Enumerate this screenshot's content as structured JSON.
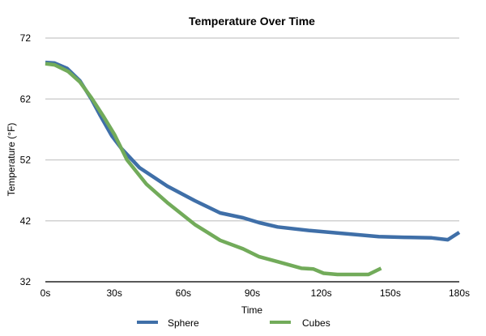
{
  "chart_data": {
    "type": "line",
    "title": "Temperature Over Time",
    "xlabel": "Time",
    "ylabel": "Temperature (°F)",
    "xlim": [
      0,
      180
    ],
    "ylim": [
      32,
      72
    ],
    "x_ticks": [
      "0s",
      "30s",
      "60s",
      "90s",
      "120s",
      "150s",
      "180s"
    ],
    "x_tick_values": [
      0,
      30,
      60,
      90,
      120,
      150,
      180
    ],
    "y_ticks": [
      "32",
      "42",
      "52",
      "62",
      "72"
    ],
    "y_tick_values": [
      32,
      42,
      52,
      62,
      72
    ],
    "grid": "horizontal",
    "legend_position": "bottom",
    "series": [
      {
        "name": "Sphere",
        "color": "#3f6fa8",
        "x": [
          0,
          4,
          9.5,
          15,
          20,
          24,
          29,
          33,
          41,
          53,
          65,
          76,
          86,
          93,
          101,
          115,
          133,
          145,
          156,
          168,
          175,
          180
        ],
        "y": [
          68.0,
          67.9,
          67.0,
          65.0,
          62.0,
          59.2,
          55.9,
          53.9,
          50.7,
          47.7,
          45.3,
          43.3,
          42.5,
          41.7,
          41.0,
          40.4,
          39.8,
          39.4,
          39.3,
          39.2,
          38.9,
          40.1
        ]
      },
      {
        "name": "Cubes",
        "color": "#72ab5a",
        "x": [
          0,
          4,
          10,
          15,
          20,
          25,
          30,
          35.5,
          44,
          53,
          65,
          76,
          86,
          93,
          101,
          111.5,
          116.5,
          121,
          127,
          140.5,
          146
        ],
        "y": [
          67.8,
          67.6,
          66.5,
          64.8,
          62.2,
          59.3,
          56.2,
          52.0,
          48.0,
          45.0,
          41.4,
          38.8,
          37.4,
          36.1,
          35.3,
          34.2,
          34.1,
          33.4,
          33.2,
          33.2,
          34.2
        ]
      }
    ]
  }
}
